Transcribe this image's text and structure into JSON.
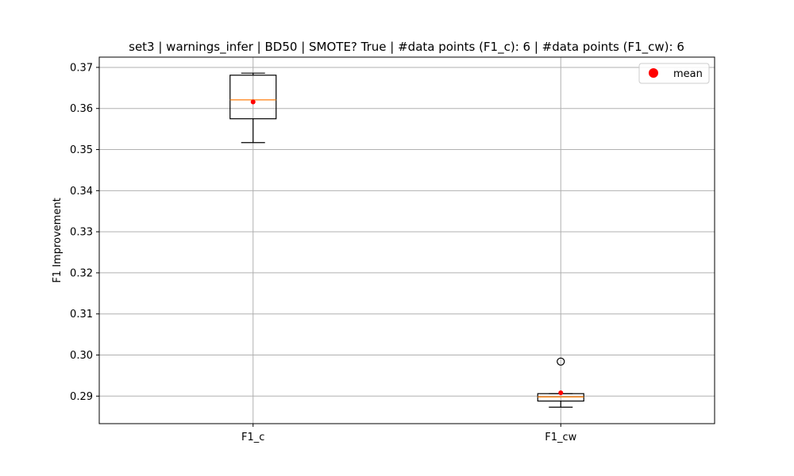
{
  "chart_data": {
    "type": "box",
    "title": "set3 | warnings_infer | BD50 | SMOTE? True | #data points (F1_c): 6 | #data points (F1_cw): 6",
    "xlabel": "",
    "ylabel": "F1 Improvement",
    "categories": [
      "F1_c",
      "F1_cw"
    ],
    "ylim": [
      0.2833,
      0.3725
    ],
    "yticks": [
      0.29,
      0.3,
      0.31,
      0.32,
      0.33,
      0.34,
      0.35,
      0.36,
      0.37
    ],
    "ytick_labels": [
      "0.29",
      "0.30",
      "0.31",
      "0.32",
      "0.33",
      "0.34",
      "0.35",
      "0.36",
      "0.37"
    ],
    "grid": true,
    "legend": {
      "placement": "top-right",
      "entries": [
        {
          "label": "mean",
          "color": "#ff0000"
        }
      ]
    },
    "boxes": [
      {
        "category": "F1_c",
        "whisker_low": 0.3517,
        "q1": 0.3575,
        "median": 0.3621,
        "q3": 0.3681,
        "whisker_high": 0.3686,
        "mean": 0.3616,
        "outliers": []
      },
      {
        "category": "F1_cw",
        "whisker_low": 0.2873,
        "q1": 0.2888,
        "median": 0.2898,
        "q3": 0.2906,
        "whisker_high": 0.2906,
        "mean": 0.2908,
        "outliers": [
          0.2984
        ]
      }
    ],
    "colors": {
      "box": "#000000",
      "median": "#ff7f0e",
      "mean": "#ff0000",
      "grid": "#b0b0b0"
    }
  }
}
